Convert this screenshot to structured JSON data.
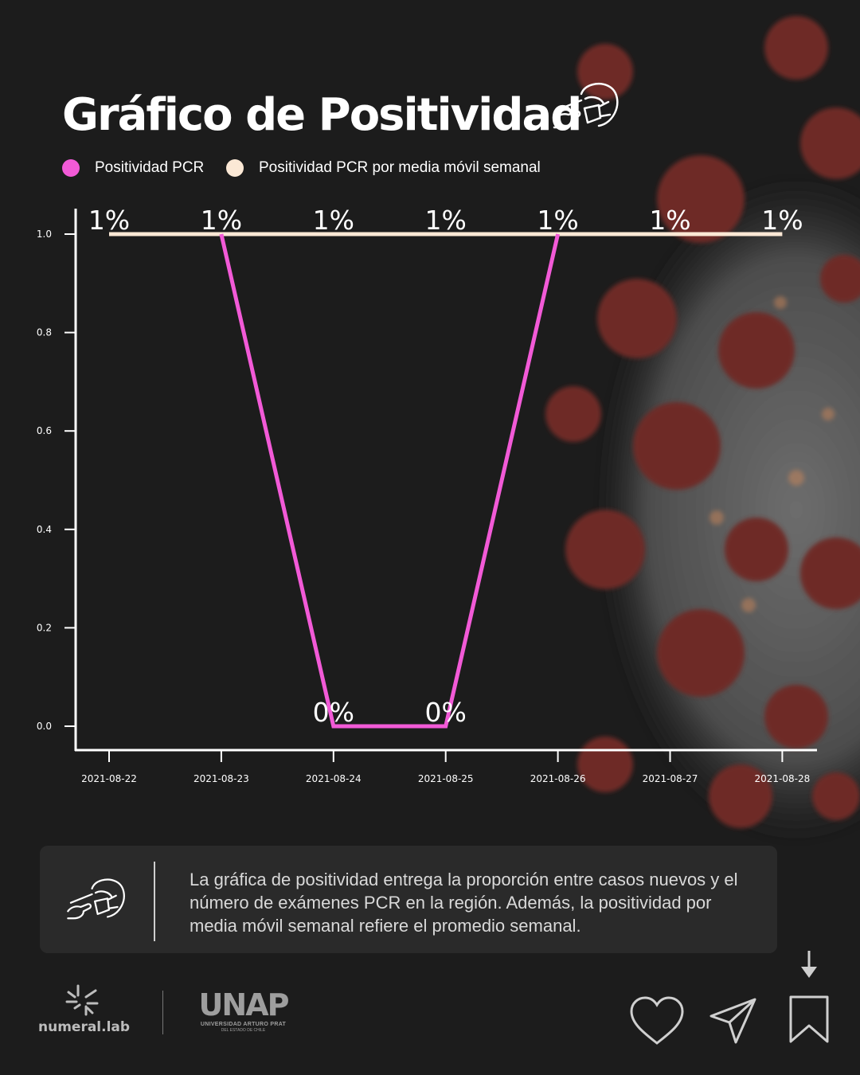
{
  "title": "Gráfico de Positividad",
  "legend": [
    {
      "label": "Positividad PCR",
      "color": "#f25ad7"
    },
    {
      "label": "Positividad PCR por media móvil semanal",
      "color": "#fbe8d5"
    }
  ],
  "chart_data": {
    "type": "line",
    "x": [
      "2021-08-22",
      "2021-08-23",
      "2021-08-24",
      "2021-08-25",
      "2021-08-26",
      "2021-08-27",
      "2021-08-28"
    ],
    "series": [
      {
        "name": "Positividad PCR",
        "color": "#f25ad7",
        "values": [
          null,
          1.0,
          0.0,
          0.0,
          1.0,
          null,
          null
        ],
        "labels": [
          null,
          null,
          "0%",
          "0%",
          null,
          null,
          null
        ]
      },
      {
        "name": "Positividad PCR por media móvil semanal",
        "color": "#fbe8d5",
        "values": [
          1.0,
          1.0,
          1.0,
          1.0,
          1.0,
          1.0,
          1.0
        ],
        "labels": [
          "1%",
          "1%",
          "1%",
          "1%",
          "1%",
          "1%",
          "1%"
        ]
      }
    ],
    "yticks": [
      "0.0",
      "0.2",
      "0.4",
      "0.6",
      "0.8",
      "1.0"
    ],
    "ylim": [
      0,
      1.0
    ],
    "grid": false
  },
  "info": {
    "text": "La gráfica de positividad entrega la proporción entre casos nuevos y el número de exámenes PCR en la región. Además, la positividad por media móvil semanal refiere el promedio semanal."
  },
  "footer": {
    "brand1": "numeral.lab",
    "brand2": "UNAP",
    "brand2_sub": "UNIVERSIDAD ARTURO PRAT",
    "brand2_sub2": "DEL ESTADO DE CHILE"
  },
  "icons": {
    "title_icon": "pcr-swab-test-icon",
    "info_icon": "pcr-swab-test-icon",
    "actions": [
      "heart-icon",
      "send-icon",
      "bookmark-icon",
      "arrow-down-icon"
    ]
  }
}
